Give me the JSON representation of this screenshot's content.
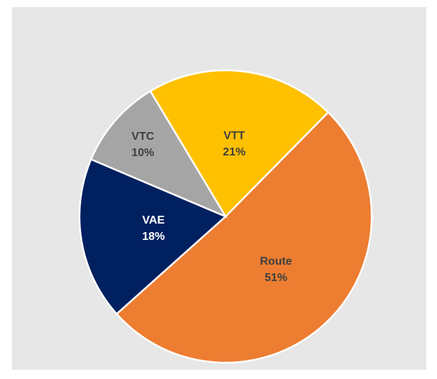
{
  "chart_data": {
    "type": "pie",
    "categories": [
      "VTT",
      "Route",
      "VAE",
      "VTC"
    ],
    "values": [
      21,
      51,
      18,
      10
    ],
    "value_labels": [
      "21%",
      "51%",
      "18%",
      "10%"
    ],
    "colors": [
      "#ffc000",
      "#ed7d31",
      "#002060",
      "#a5a5a5"
    ]
  }
}
